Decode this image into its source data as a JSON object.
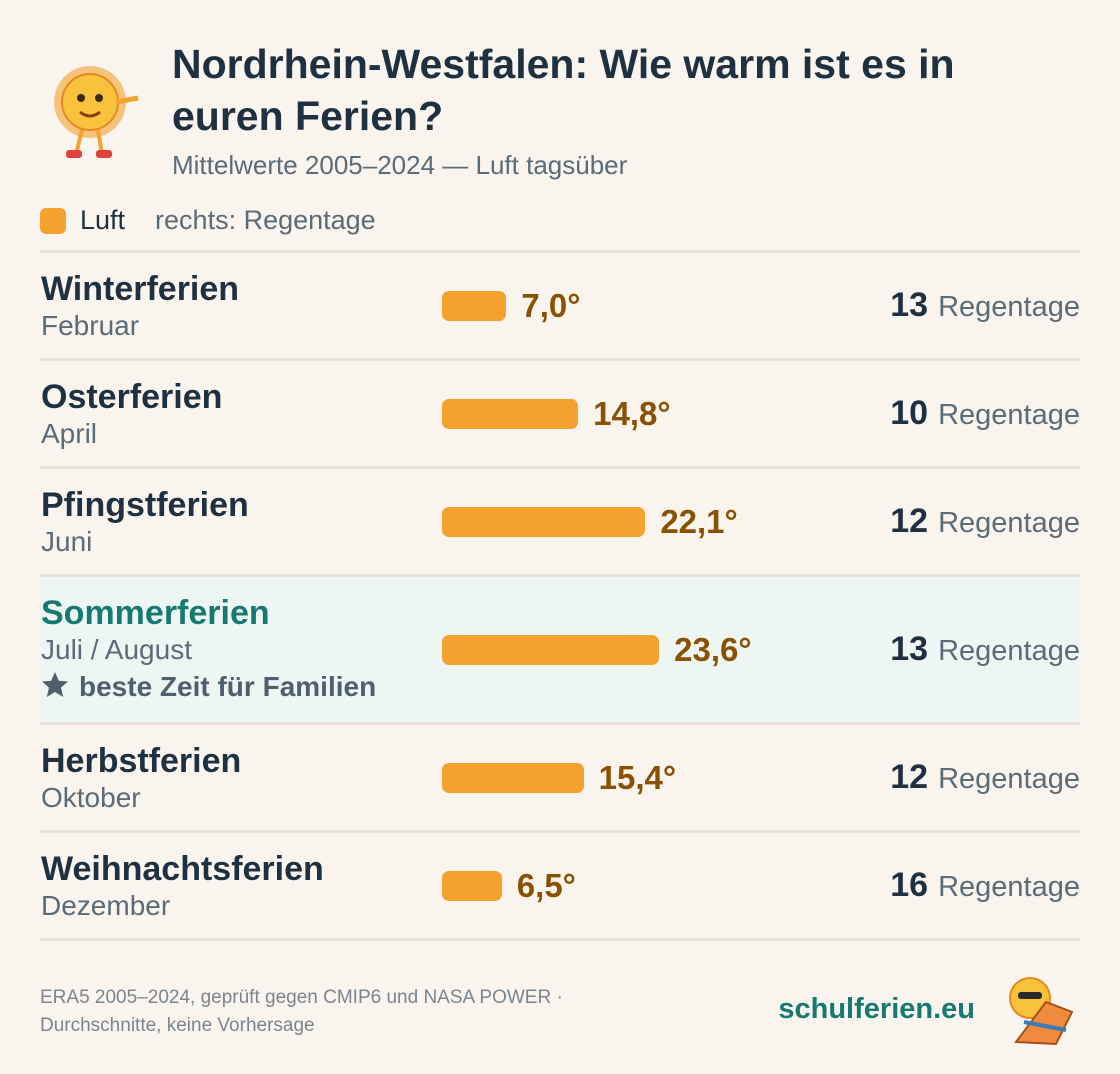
{
  "chart_data": {
    "type": "bar",
    "orientation": "horizontal",
    "title": "Nordrhein-Westfalen: Wie warm ist es in euren Ferien?",
    "subtitle": "Mittelwerte 2005–2024 — Luft tagsüber",
    "legend": "Luft",
    "note": "rechts: Regentage",
    "color": "#f4a22d",
    "categories": [
      "Winterferien",
      "Osterferien",
      "Pfingstferien",
      "Sommerferien",
      "Herbstferien",
      "Weihnachtsferien"
    ],
    "months": [
      "Februar",
      "April",
      "Juni",
      "Juli / August",
      "Oktober",
      "Dezember"
    ],
    "values": [
      7.0,
      14.8,
      22.1,
      23.6,
      15.4,
      6.5
    ],
    "value_labels": [
      "7,0°",
      "14,8°",
      "22,1°",
      "23,6°",
      "15,4°",
      "6,5°"
    ],
    "rain_days": [
      13,
      10,
      12,
      13,
      12,
      16
    ],
    "rain_unit": "Regentage",
    "highlight": "Sommerferien",
    "highlight_note": "beste Zeit für Familien",
    "source": [
      "ERA5 2005–2024, geprüft gegen CMIP6 und NASA POWER ·",
      "Durchschnitte, keine Vorhersage"
    ],
    "brand": "schulferien.eu"
  }
}
